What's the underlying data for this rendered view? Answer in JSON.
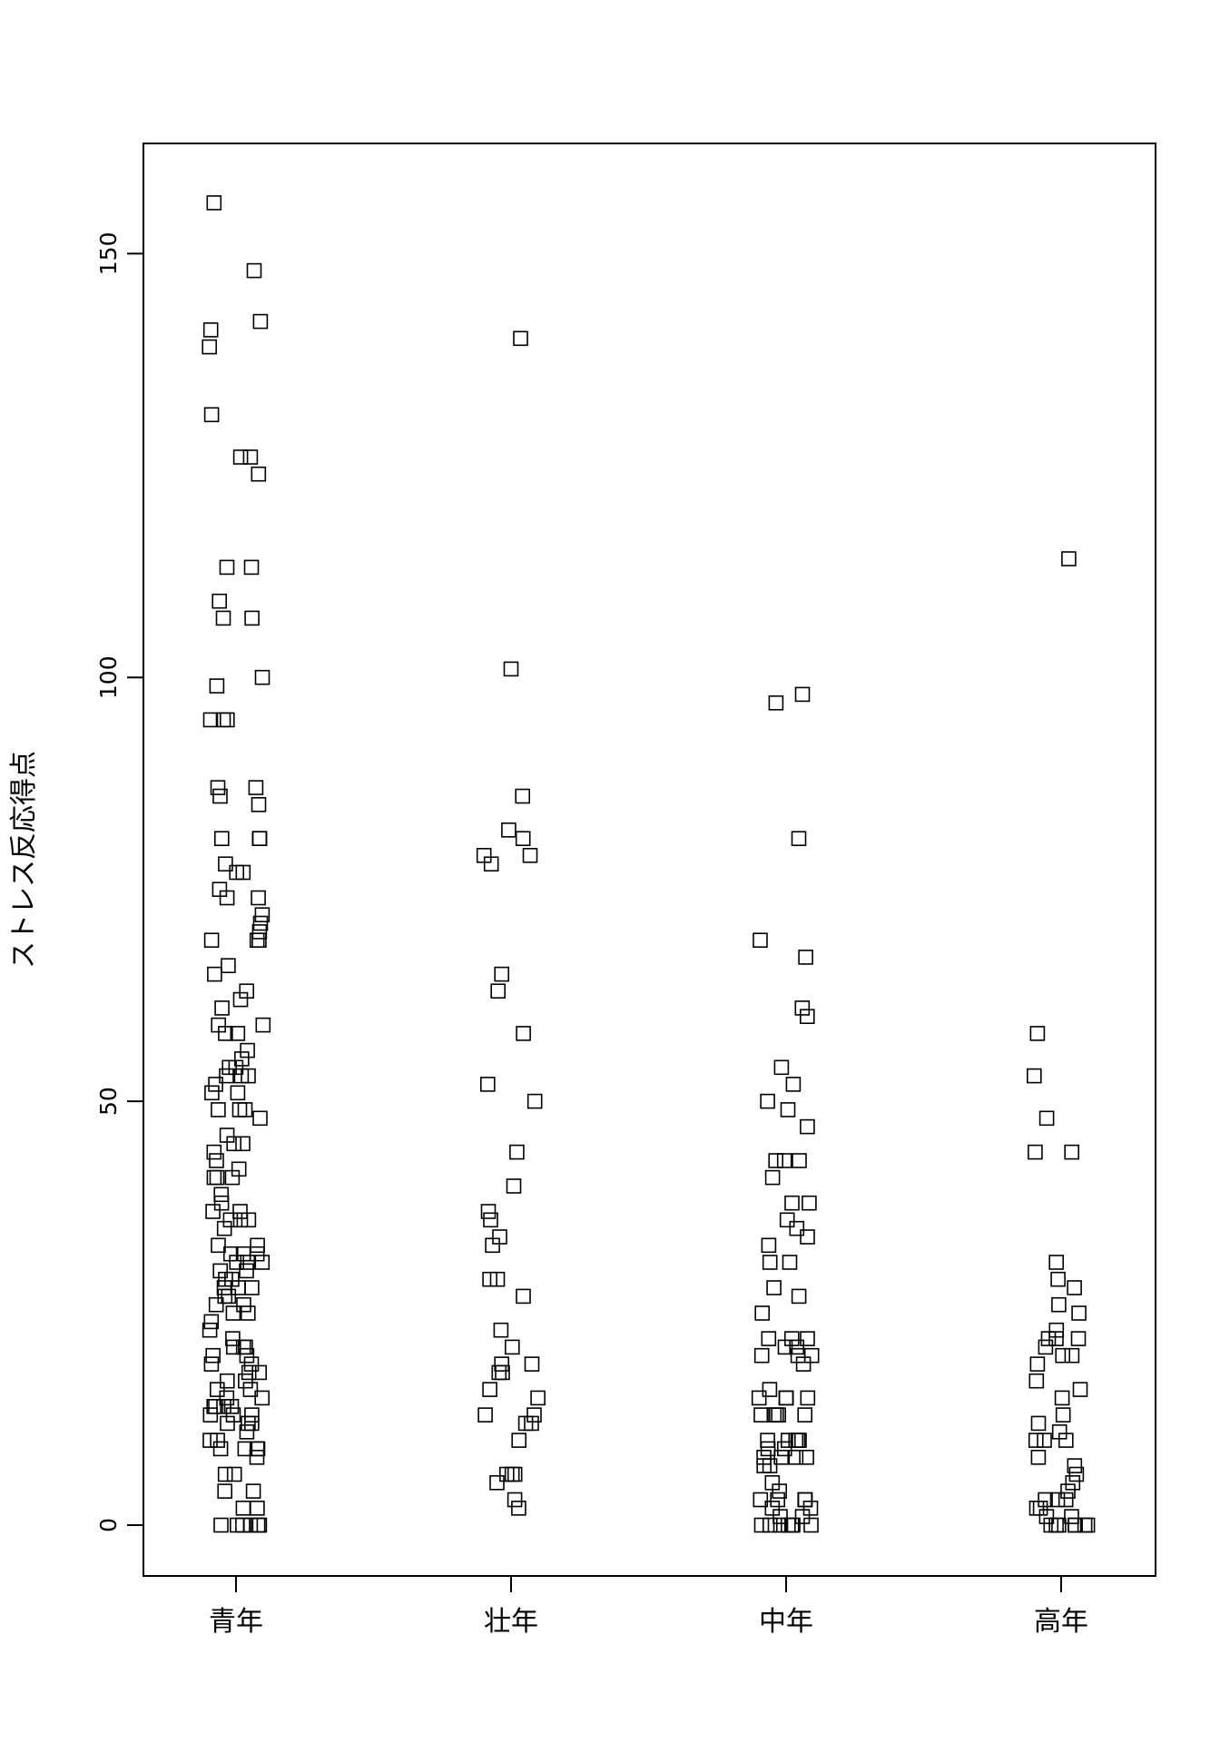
{
  "chart_data": {
    "type": "scatter",
    "title": "",
    "xlabel": "",
    "ylabel": "ストレス反応得点",
    "categories": [
      "青年",
      "壮年",
      "中年",
      "高年"
    ],
    "yticks": [
      0,
      50,
      100,
      150
    ],
    "ylim": [
      -6,
      163
    ],
    "grid": false,
    "marker": "open-square",
    "series": [
      {
        "values": [
          156,
          148,
          142,
          141,
          139,
          131,
          126,
          126,
          124,
          113,
          113,
          109,
          107,
          107,
          100,
          99,
          95,
          95,
          95,
          87,
          87,
          86,
          85,
          81,
          81,
          81,
          78,
          77,
          77,
          75,
          74,
          74,
          72,
          71,
          70,
          69,
          69,
          69,
          66,
          65,
          63,
          62,
          61,
          59,
          59,
          58,
          58,
          56,
          55,
          54,
          54,
          53,
          53,
          53,
          52,
          51,
          51,
          49,
          49,
          49,
          48,
          46,
          45,
          45,
          44,
          43,
          42,
          41,
          41,
          41,
          39,
          38,
          37,
          37,
          36,
          36,
          36,
          35,
          33,
          33,
          32,
          32,
          32,
          31,
          31,
          31,
          30,
          30,
          29,
          29,
          28,
          28,
          28,
          27,
          27,
          26,
          26,
          25,
          25,
          24,
          23,
          22,
          21,
          21,
          21,
          20,
          20,
          19,
          19,
          18,
          18,
          17,
          17,
          16,
          16,
          15,
          15,
          14,
          14,
          14,
          14,
          13,
          13,
          13,
          12,
          12,
          12,
          11,
          10,
          10,
          9,
          9,
          9,
          9,
          8,
          6,
          6,
          4,
          4,
          2,
          2,
          0,
          0,
          0,
          0,
          0,
          0
        ]
      },
      {
        "values": [
          140,
          101,
          86,
          82,
          81,
          79,
          79,
          78,
          65,
          63,
          58,
          52,
          50,
          44,
          40,
          37,
          36,
          34,
          33,
          29,
          29,
          27,
          23,
          21,
          19,
          19,
          18,
          18,
          16,
          15,
          13,
          13,
          12,
          12,
          10,
          6,
          6,
          6,
          5,
          3,
          2
        ]
      },
      {
        "values": [
          98,
          97,
          81,
          69,
          67,
          61,
          60,
          54,
          52,
          50,
          49,
          47,
          43,
          43,
          43,
          41,
          38,
          38,
          36,
          35,
          34,
          33,
          31,
          31,
          28,
          27,
          25,
          22,
          22,
          22,
          21,
          21,
          20,
          20,
          20,
          19,
          16,
          15,
          15,
          15,
          15,
          13,
          13,
          13,
          13,
          13,
          10,
          10,
          10,
          10,
          10,
          9,
          9,
          8,
          8,
          8,
          8,
          7,
          7,
          5,
          4,
          3,
          3,
          3,
          3,
          2,
          2,
          1,
          1,
          0,
          0,
          0,
          0,
          0,
          0,
          0
        ]
      },
      {
        "values": [
          114,
          58,
          53,
          48,
          44,
          44,
          31,
          29,
          28,
          26,
          25,
          23,
          22,
          22,
          22,
          21,
          20,
          20,
          19,
          17,
          16,
          15,
          13,
          12,
          11,
          10,
          10,
          10,
          8,
          7,
          6,
          5,
          4,
          3,
          3,
          3,
          2,
          2,
          1,
          1,
          0,
          0,
          0,
          0,
          0,
          0,
          0
        ]
      }
    ]
  }
}
